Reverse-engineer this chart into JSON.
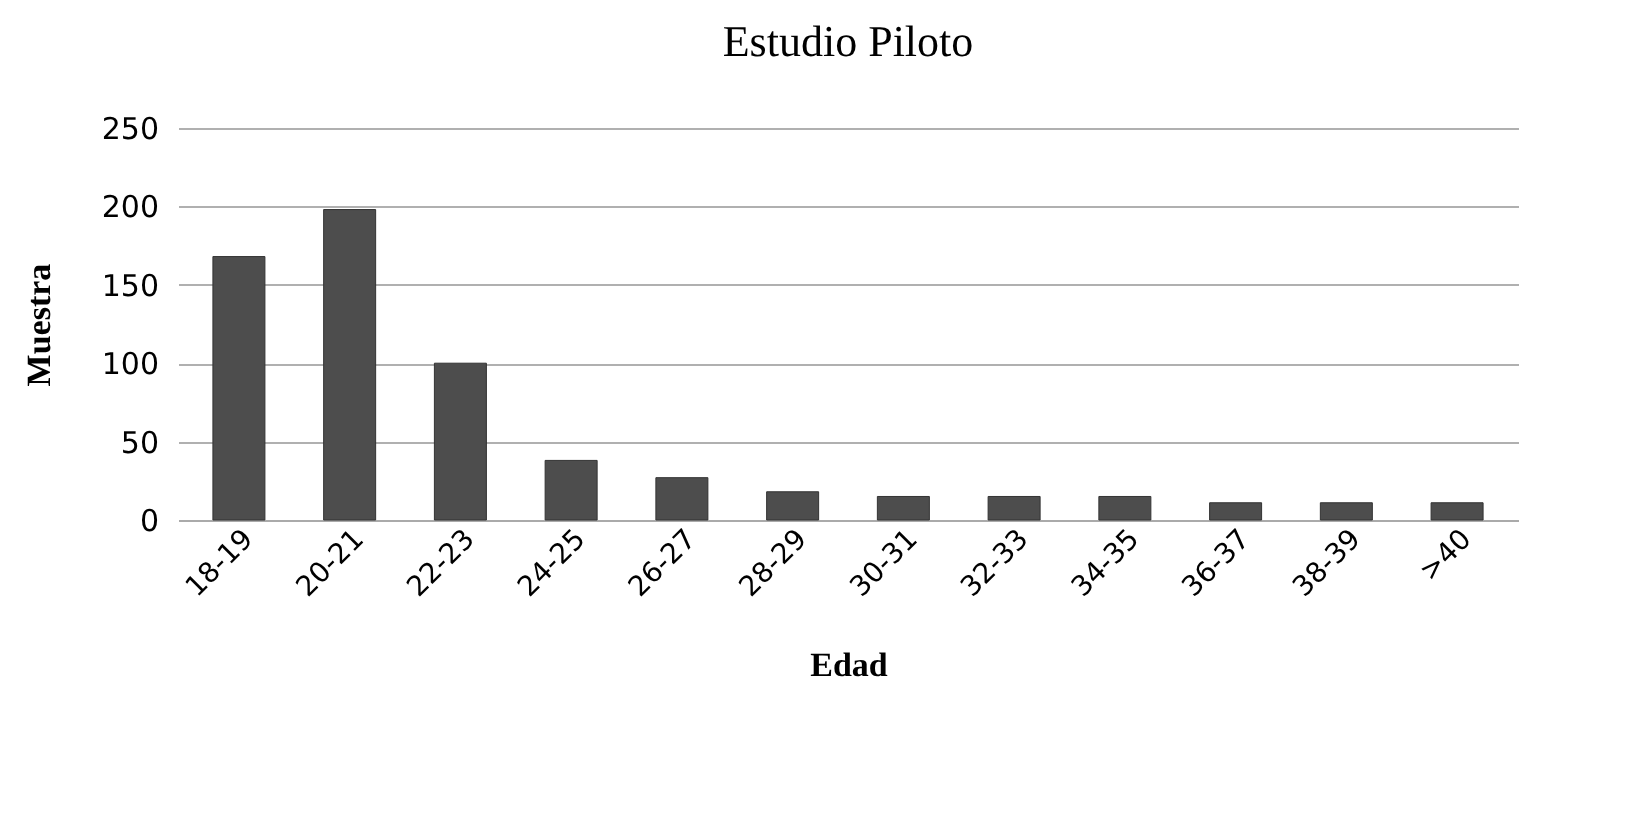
{
  "chart_data": {
    "type": "bar",
    "title": "Estudio Piloto",
    "xlabel": "Edad",
    "ylabel": "Muestra",
    "categories": [
      "18-19",
      "20-21",
      "22-23",
      "24-25",
      "26-27",
      "28-29",
      "30-31",
      "32-33",
      "34-35",
      "36-37",
      "38-39",
      ">40"
    ],
    "values": [
      168,
      198,
      100,
      38,
      27,
      18,
      15,
      15,
      15,
      11,
      11,
      11
    ],
    "color": "#4d4d4d",
    "ylim": [
      0,
      250
    ],
    "yticks": [
      0,
      50,
      100,
      150,
      200,
      250
    ],
    "grid": "y"
  }
}
